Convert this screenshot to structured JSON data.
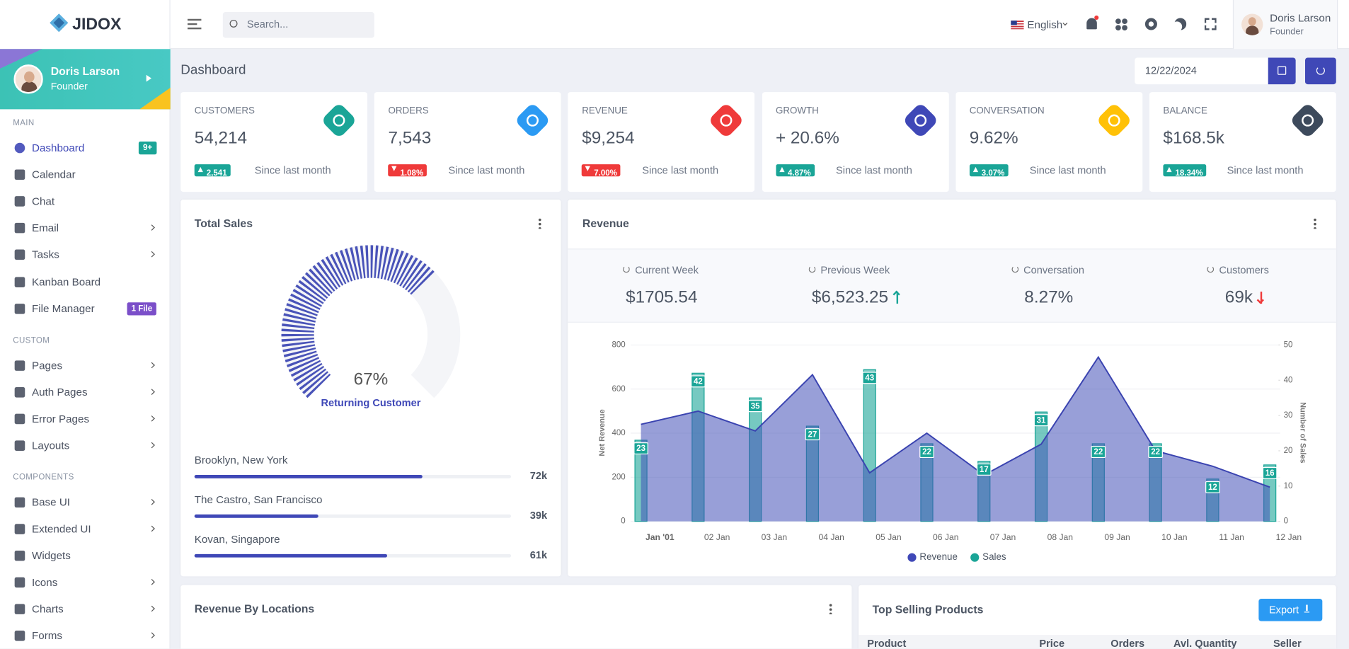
{
  "sidebar": {
    "brand": "JIDOX",
    "user": {
      "name": "Doris Larson",
      "role": "Founder"
    },
    "sections": [
      {
        "title": "MAIN",
        "items": [
          {
            "label": "Dashboard",
            "badge": "9+",
            "badge_color": "#1aa597",
            "active": true
          },
          {
            "label": "Calendar"
          },
          {
            "label": "Chat"
          },
          {
            "label": "Email",
            "submenu": true
          },
          {
            "label": "Tasks",
            "submenu": true
          },
          {
            "label": "Kanban Board"
          },
          {
            "label": "File Manager",
            "badge": "1 File",
            "badge_color": "#7b4fc9"
          }
        ]
      },
      {
        "title": "CUSTOM",
        "items": [
          {
            "label": "Pages",
            "submenu": true
          },
          {
            "label": "Auth Pages",
            "submenu": true
          },
          {
            "label": "Error Pages",
            "submenu": true
          },
          {
            "label": "Layouts",
            "submenu": true
          }
        ]
      },
      {
        "title": "COMPONENTS",
        "items": [
          {
            "label": "Base UI",
            "submenu": true
          },
          {
            "label": "Extended UI",
            "submenu": true
          },
          {
            "label": "Widgets"
          },
          {
            "label": "Icons",
            "submenu": true
          },
          {
            "label": "Charts",
            "submenu": true
          },
          {
            "label": "Forms",
            "submenu": true
          }
        ]
      }
    ]
  },
  "topbar": {
    "search_placeholder": "Search...",
    "language": "English",
    "user": {
      "name": "Doris Larson",
      "role": "Founder"
    }
  },
  "page": {
    "title": "Dashboard",
    "date": "12/22/2024"
  },
  "stats": [
    {
      "label": "CUSTOMERS",
      "value": "54,214",
      "change": "2,541",
      "trend": "up",
      "note": "Since last month",
      "color": "#1aa597"
    },
    {
      "label": "ORDERS",
      "value": "7,543",
      "change": "1.08%",
      "trend": "down",
      "note": "Since last month",
      "color": "#2b9af3"
    },
    {
      "label": "REVENUE",
      "value": "$9,254",
      "change": "7.00%",
      "trend": "down",
      "note": "Since last month",
      "color": "#ef3a3a"
    },
    {
      "label": "GROWTH",
      "value": "+ 20.6%",
      "change": "4.87%",
      "trend": "up",
      "note": "Since last month",
      "color": "#3f48b7"
    },
    {
      "label": "CONVERSATION",
      "value": "9.62%",
      "change": "3.07%",
      "trend": "up",
      "note": "Since last month",
      "color": "#ffc107"
    },
    {
      "label": "BALANCE",
      "value": "$168.5k",
      "change": "18.34%",
      "trend": "up",
      "note": "Since last month",
      "color": "#3d4a5c"
    }
  ],
  "total_sales": {
    "title": "Total Sales",
    "gauge": {
      "value": 67,
      "value_label": "67%",
      "max": 100,
      "label": "Returning Customer",
      "color": "#4953b8"
    },
    "locations": {
      "xlim": [
        0,
        100
      ],
      "items": [
        {
          "name": "Brooklyn, New York",
          "value": 72,
          "value_label": "72k"
        },
        {
          "name": "The Castro, San Francisco",
          "value": 39,
          "value_label": "39k"
        },
        {
          "name": "Kovan, Singapore",
          "value": 61,
          "value_label": "61k"
        }
      ]
    }
  },
  "revenue": {
    "title": "Revenue",
    "summary": [
      {
        "label": "Current Week",
        "value": "$1705.54"
      },
      {
        "label": "Previous Week",
        "value": "$6,523.25",
        "trend": "up"
      },
      {
        "label": "Conversation",
        "value": "8.27%"
      },
      {
        "label": "Customers",
        "value": "69k",
        "trend": "down"
      }
    ],
    "chart_data": {
      "type": "combo",
      "categories": [
        "Jan '01",
        "02 Jan",
        "03 Jan",
        "04 Jan",
        "05 Jan",
        "06 Jan",
        "07 Jan",
        "08 Jan",
        "09 Jan",
        "10 Jan",
        "11 Jan",
        "12 Jan"
      ],
      "series": [
        {
          "name": "Revenue",
          "type": "area",
          "color": "#4450b8",
          "values": [
            440,
            500,
            410,
            665,
            220,
            400,
            210,
            350,
            745,
            320,
            250,
            155
          ]
        },
        {
          "name": "Sales",
          "type": "bar",
          "axis": "y2",
          "color": "#1aa597",
          "values": [
            23,
            42,
            35,
            27,
            43,
            22,
            17,
            31,
            22,
            22,
            12,
            16
          ]
        }
      ],
      "ylabel": "Net Revenue",
      "y2label": "Number of Sales",
      "ylim": [
        0,
        800
      ],
      "yticks": [
        0,
        200,
        400,
        600,
        800
      ],
      "y2lim": [
        0,
        50
      ],
      "y2ticks": [
        0,
        10,
        20,
        30,
        40,
        50
      ],
      "grid": true,
      "legend": "bottom"
    }
  },
  "locations_card": {
    "title": "Revenue By Locations"
  },
  "products": {
    "title": "Top Selling Products",
    "export": "Export",
    "columns": [
      "Product",
      "Price",
      "Orders",
      "Avl. Quantity",
      "Seller"
    ]
  }
}
